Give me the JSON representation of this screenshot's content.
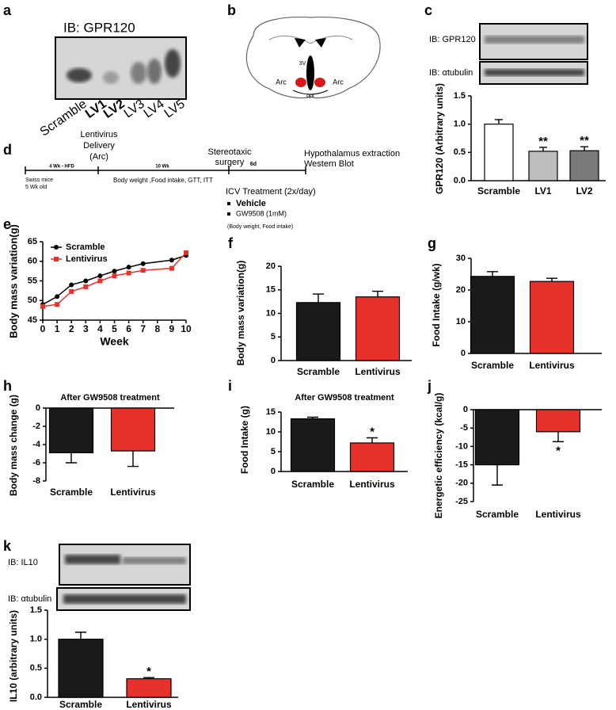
{
  "panel_labels": [
    "a",
    "b",
    "c",
    "d",
    "e",
    "f",
    "g",
    "h",
    "i",
    "j",
    "k"
  ],
  "blot_a": {
    "title": "IB: GPR120",
    "lanes": [
      "Scramble",
      "LV1",
      "LV2",
      "LV3",
      "LV4",
      "LV5"
    ],
    "lane_colors": [
      "#000000",
      "#d7191c",
      "#d7191c",
      "#000000",
      "#000000",
      "#000000"
    ]
  },
  "diagram_b": {
    "labels": [
      "3V",
      "Arc",
      "Arc",
      "opt"
    ]
  },
  "timeline_d": {
    "events": [
      [
        "Lentivirus",
        "Delivery",
        "(Arc)"
      ],
      [
        "Stereotaxic",
        "surgery"
      ],
      [
        "Hypothalamus extraction",
        "Western Blot"
      ]
    ],
    "periods": [
      "4 Wk - HFD",
      "10 Wk",
      "6d"
    ],
    "start": [
      "Swiss mice",
      "5 Wk old"
    ],
    "measures": "Body weight ,Food intake, GTT, ITT",
    "treatment": "ICV Treatment (2x/day)",
    "groups": [
      "Vehicle",
      "GW9508 (1mM)"
    ],
    "treatment_measures": "(Body weight, Food intake)"
  },
  "chart_data": [
    {
      "type": "bar",
      "blots": [
        "IB: GPR120",
        "IB: αtubulin"
      ],
      "ylabel": "GPR120 (Arbitrary units)",
      "categories": [
        "Scramble",
        "LV1",
        "LV2"
      ],
      "values": [
        1.0,
        0.52,
        0.53
      ],
      "errors": [
        0.08,
        0.07,
        0.07
      ],
      "colors": [
        "#ffffff",
        "#bdbdbd",
        "#7a7a7a"
      ],
      "annotations": [
        null,
        "**",
        "**"
      ],
      "ylim": [
        0,
        1.5
      ],
      "yticks": [
        {
          "value": 0,
          "label": "0.0"
        },
        0.5,
        {
          "value": 1,
          "label": "1.0"
        },
        1.5
      ]
    },
    {
      "type": "line",
      "ylabel": "Body mass variation(g)",
      "xlabel": "Week",
      "x": [
        0,
        1,
        2,
        3,
        4,
        5,
        6,
        7,
        9,
        10
      ],
      "series": [
        {
          "name": "Scramble",
          "color": "#000000",
          "marker": "circle",
          "values": [
            49,
            51,
            54,
            55,
            56.3,
            57.5,
            58.5,
            59.4,
            60.3,
            61.5
          ]
        },
        {
          "name": "Lentivirus",
          "color": "#e8312a",
          "marker": "square",
          "values": [
            48.5,
            49,
            52.3,
            53.5,
            55,
            56.3,
            57,
            57.7,
            58.2,
            62.2
          ]
        }
      ],
      "legend": "upper left",
      "xlim": [
        0,
        10
      ],
      "xticks": [
        0,
        1,
        2,
        3,
        4,
        5,
        6,
        7,
        8,
        9,
        10
      ],
      "ylim": [
        45,
        65
      ],
      "yticks": [
        45,
        50,
        55,
        60,
        65
      ]
    },
    {
      "type": "bar",
      "ylabel": "Body mass variation(g)",
      "categories": [
        "Scramble",
        "Lentivirus"
      ],
      "values": [
        12.3,
        13.5
      ],
      "errors": [
        1.8,
        1.2
      ],
      "colors": [
        "#1a1a1a",
        "#e8312a"
      ],
      "ylim": [
        0,
        20
      ],
      "yticks": [
        0,
        5,
        10,
        15,
        20
      ]
    },
    {
      "type": "bar",
      "ylabel": "Food Intake (g/wk)",
      "categories": [
        "Scramble",
        "Lentivirus"
      ],
      "values": [
        24.3,
        22.7
      ],
      "errors": [
        1.5,
        1.0
      ],
      "colors": [
        "#1a1a1a",
        "#e8312a"
      ],
      "ylim": [
        0,
        30
      ],
      "yticks": [
        0,
        10,
        20,
        30
      ]
    },
    {
      "type": "bar",
      "title": "After GW9508 treatment",
      "ylabel": "Body mass change (g)",
      "categories": [
        "Scramble",
        "Lentivirus"
      ],
      "values": [
        -4.9,
        -4.7
      ],
      "errors": [
        1.1,
        1.7
      ],
      "colors": [
        "#1a1a1a",
        "#e8312a"
      ],
      "ylim": [
        -8,
        0
      ],
      "yticks": [
        -8,
        -6,
        -4,
        -2,
        0
      ]
    },
    {
      "type": "bar",
      "title": "After GW9508 treatment",
      "ylabel": "Food Intake (g)",
      "categories": [
        "Scramble",
        "Lentivirus"
      ],
      "values": [
        13.3,
        7.2
      ],
      "errors": [
        0.4,
        1.3
      ],
      "colors": [
        "#1a1a1a",
        "#e8312a"
      ],
      "annotations": [
        null,
        "*"
      ],
      "ylim": [
        0,
        15
      ],
      "yticks": [
        0,
        5,
        10,
        15
      ]
    },
    {
      "type": "bar",
      "ylabel": "Energetic efficiency (kcal/g)",
      "categories": [
        "Scramble",
        "Lentivirus"
      ],
      "values": [
        -15,
        -6
      ],
      "errors": [
        5.5,
        2.7
      ],
      "colors": [
        "#1a1a1a",
        "#e8312a"
      ],
      "annotations": [
        null,
        "*"
      ],
      "ylim": [
        -25,
        0
      ],
      "yticks": [
        -25,
        -20,
        -15,
        -10,
        -5,
        0
      ]
    },
    {
      "type": "bar",
      "blots": [
        "IB: IL10",
        "IB: αtubulin"
      ],
      "ylabel": "IL10 (arbitrary units)",
      "categories": [
        "Scramble",
        "Lentivirus"
      ],
      "values": [
        1.0,
        0.32
      ],
      "errors": [
        0.12,
        0.02
      ],
      "colors": [
        "#1a1a1a",
        "#e8312a"
      ],
      "annotations": [
        null,
        "*"
      ],
      "ylim": [
        0,
        1.5
      ],
      "yticks": [
        {
          "value": 0,
          "label": "0.0"
        },
        0.5,
        {
          "value": 1,
          "label": "1.0"
        },
        1.5
      ]
    }
  ]
}
